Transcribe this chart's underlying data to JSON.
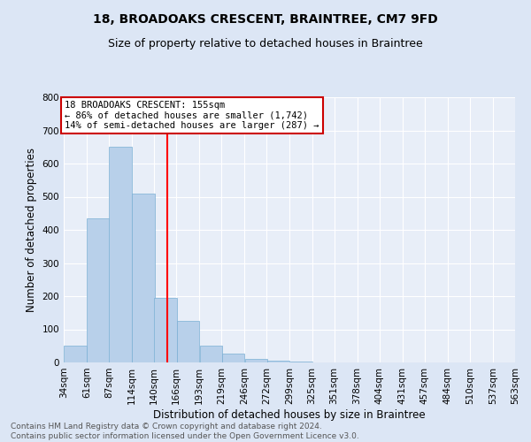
{
  "title": "18, BROADOAKS CRESCENT, BRAINTREE, CM7 9FD",
  "subtitle": "Size of property relative to detached houses in Braintree",
  "xlabel": "Distribution of detached houses by size in Braintree",
  "ylabel": "Number of detached properties",
  "footer_line1": "Contains HM Land Registry data © Crown copyright and database right 2024.",
  "footer_line2": "Contains public sector information licensed under the Open Government Licence v3.0.",
  "bar_values": [
    50,
    435,
    650,
    510,
    195,
    125,
    50,
    27,
    10,
    5,
    2,
    1,
    0,
    0,
    0,
    0,
    0,
    0,
    0,
    0
  ],
  "bin_edges": [
    34,
    61,
    87,
    114,
    140,
    166,
    193,
    219,
    246,
    272,
    299,
    325,
    351,
    378,
    404,
    431,
    457,
    484,
    510,
    537,
    563
  ],
  "x_tick_labels": [
    "34sqm",
    "61sqm",
    "87sqm",
    "114sqm",
    "140sqm",
    "166sqm",
    "193sqm",
    "219sqm",
    "246sqm",
    "272sqm",
    "299sqm",
    "325sqm",
    "351sqm",
    "378sqm",
    "404sqm",
    "431sqm",
    "457sqm",
    "484sqm",
    "510sqm",
    "537sqm",
    "563sqm"
  ],
  "ylim": [
    0,
    800
  ],
  "yticks": [
    0,
    100,
    200,
    300,
    400,
    500,
    600,
    700,
    800
  ],
  "bar_color": "#b8d0ea",
  "bar_edge_color": "#7aafd4",
  "bg_color": "#e8eef8",
  "fig_color": "#dce6f5",
  "grid_color": "#ffffff",
  "red_line_x": 155,
  "annotation_text": "18 BROADOAKS CRESCENT: 155sqm\n← 86% of detached houses are smaller (1,742)\n14% of semi-detached houses are larger (287) →",
  "annotation_box_color": "#ffffff",
  "annotation_border_color": "#cc0000",
  "title_fontsize": 10,
  "subtitle_fontsize": 9,
  "axis_label_fontsize": 8.5,
  "tick_fontsize": 7.5,
  "footer_fontsize": 6.5,
  "annot_fontsize": 7.5
}
